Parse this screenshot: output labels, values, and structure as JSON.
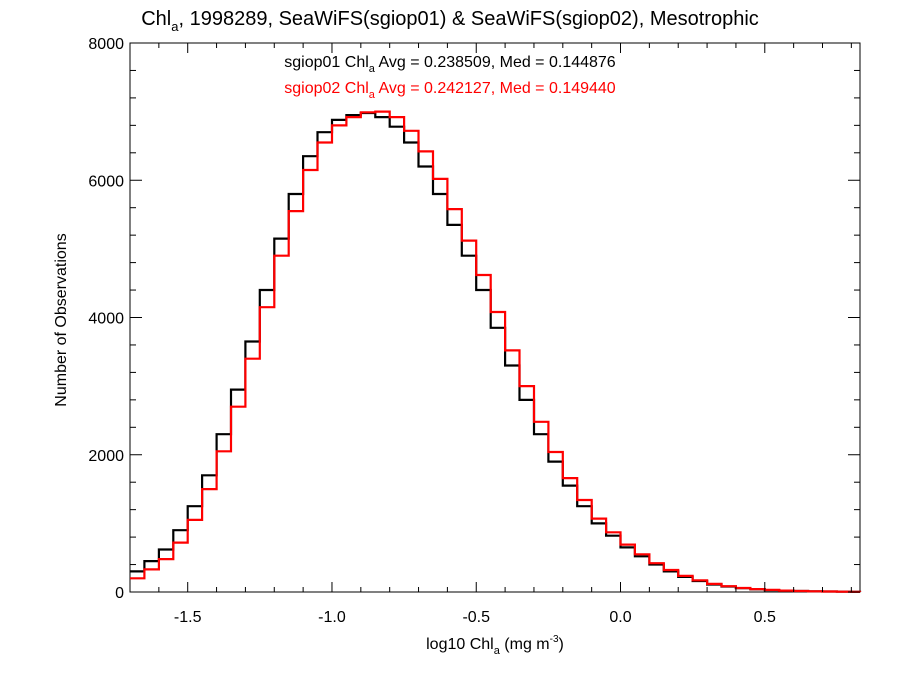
{
  "title": {
    "part1": "Chl",
    "sub": "a",
    "part2": ", 1998289, SeaWiFS(sgiop01) & SeaWiFS(sgiop02), Mesotrophic"
  },
  "stats": [
    {
      "prefix": "sgiop01 Chl",
      "sub": "a",
      "suffix": " Avg = 0.238509, Med = 0.144876",
      "color": "#000000"
    },
    {
      "prefix": "sgiop02 Chl",
      "sub": "a",
      "suffix": " Avg = 0.242127, Med = 0.149440",
      "color": "#ff0000"
    }
  ],
  "xlabel": {
    "pre": "log10 Chl",
    "sub": "a",
    "mid": " (mg m",
    "sup": "-3",
    "post": ")"
  },
  "ylabel": "Number of Observations",
  "chart_data": {
    "type": "line",
    "step": true,
    "xlim": [
      -1.7,
      0.83
    ],
    "ylim": [
      0,
      8000
    ],
    "xticks": [
      -1.5,
      -1.0,
      -0.5,
      0.0,
      0.5
    ],
    "xtick_labels": [
      "-1.5",
      "-1.0",
      "-0.5",
      "0.0",
      "0.5"
    ],
    "yticks": [
      0,
      2000,
      4000,
      6000,
      8000
    ],
    "ytick_labels": [
      "0",
      "2000",
      "4000",
      "6000",
      "8000"
    ],
    "grid": false,
    "series": [
      {
        "name": "sgiop01",
        "color": "#000000",
        "x": [
          -1.7,
          -1.65,
          -1.6,
          -1.55,
          -1.5,
          -1.45,
          -1.4,
          -1.35,
          -1.3,
          -1.25,
          -1.2,
          -1.15,
          -1.1,
          -1.05,
          -1.0,
          -0.95,
          -0.9,
          -0.85,
          -0.8,
          -0.75,
          -0.7,
          -0.65,
          -0.6,
          -0.55,
          -0.5,
          -0.45,
          -0.4,
          -0.35,
          -0.3,
          -0.25,
          -0.2,
          -0.15,
          -0.1,
          -0.05,
          0.0,
          0.05,
          0.1,
          0.15,
          0.2,
          0.25,
          0.3,
          0.35,
          0.4,
          0.45,
          0.5,
          0.55,
          0.6,
          0.65,
          0.7,
          0.75,
          0.8,
          0.83
        ],
        "y": [
          300,
          450,
          620,
          900,
          1250,
          1700,
          2300,
          2950,
          3650,
          4400,
          5150,
          5800,
          6350,
          6700,
          6880,
          6950,
          6980,
          6920,
          6780,
          6550,
          6200,
          5800,
          5350,
          4900,
          4400,
          3850,
          3300,
          2800,
          2300,
          1900,
          1550,
          1250,
          1000,
          820,
          650,
          520,
          400,
          300,
          220,
          160,
          110,
          80,
          55,
          40,
          28,
          20,
          14,
          10,
          7,
          5,
          3,
          2
        ]
      },
      {
        "name": "sgiop02",
        "color": "#ff0000",
        "x": [
          -1.7,
          -1.65,
          -1.6,
          -1.55,
          -1.5,
          -1.45,
          -1.4,
          -1.35,
          -1.3,
          -1.25,
          -1.2,
          -1.15,
          -1.1,
          -1.05,
          -1.0,
          -0.95,
          -0.9,
          -0.85,
          -0.8,
          -0.75,
          -0.7,
          -0.65,
          -0.6,
          -0.55,
          -0.5,
          -0.45,
          -0.4,
          -0.35,
          -0.3,
          -0.25,
          -0.2,
          -0.15,
          -0.1,
          -0.05,
          0.0,
          0.05,
          0.1,
          0.15,
          0.2,
          0.25,
          0.3,
          0.35,
          0.4,
          0.45,
          0.5,
          0.55,
          0.6,
          0.65,
          0.7,
          0.75,
          0.8,
          0.83
        ],
        "y": [
          200,
          330,
          480,
          720,
          1050,
          1500,
          2050,
          2700,
          3400,
          4150,
          4900,
          5550,
          6150,
          6550,
          6800,
          6920,
          6990,
          7000,
          6920,
          6720,
          6420,
          6020,
          5580,
          5120,
          4620,
          4080,
          3520,
          3000,
          2480,
          2040,
          1660,
          1340,
          1070,
          870,
          690,
          550,
          420,
          320,
          235,
          170,
          118,
          84,
          58,
          42,
          30,
          21,
          15,
          10,
          7,
          5,
          3,
          2
        ]
      }
    ]
  }
}
